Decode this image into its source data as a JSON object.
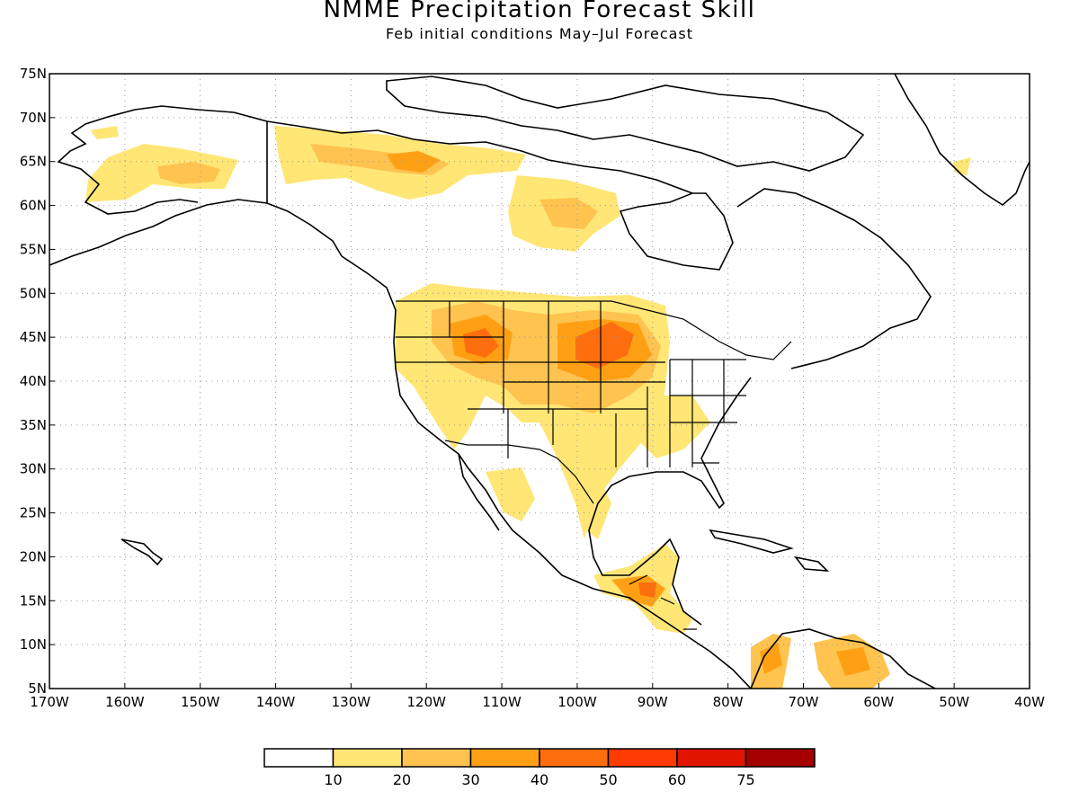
{
  "title": "NMME Precipitation Forecast Skill",
  "subtitle": "Feb initial conditions  May–Jul Forecast",
  "map": {
    "projection": "equirectangular",
    "lon_range": [
      -170,
      -40
    ],
    "lat_range": [
      5,
      75
    ],
    "gridlines": "dotted",
    "y_ticks": [
      "5N",
      "10N",
      "15N",
      "20N",
      "25N",
      "30N",
      "35N",
      "40N",
      "45N",
      "50N",
      "55N",
      "60N",
      "65N",
      "70N",
      "75N"
    ],
    "x_ticks": [
      "170W",
      "160W",
      "150W",
      "140W",
      "130W",
      "120W",
      "110W",
      "100W",
      "90W",
      "80W",
      "70W",
      "60W",
      "50W",
      "40W"
    ]
  },
  "colorbar": {
    "labels": [
      "10",
      "20",
      "30",
      "40",
      "50",
      "60",
      "75"
    ],
    "colors": [
      "#ffffff",
      "#ffe675",
      "#ffc34f",
      "#ffa014",
      "#ff6e0e",
      "#ff3b00",
      "#e11400",
      "#a50000"
    ]
  }
}
